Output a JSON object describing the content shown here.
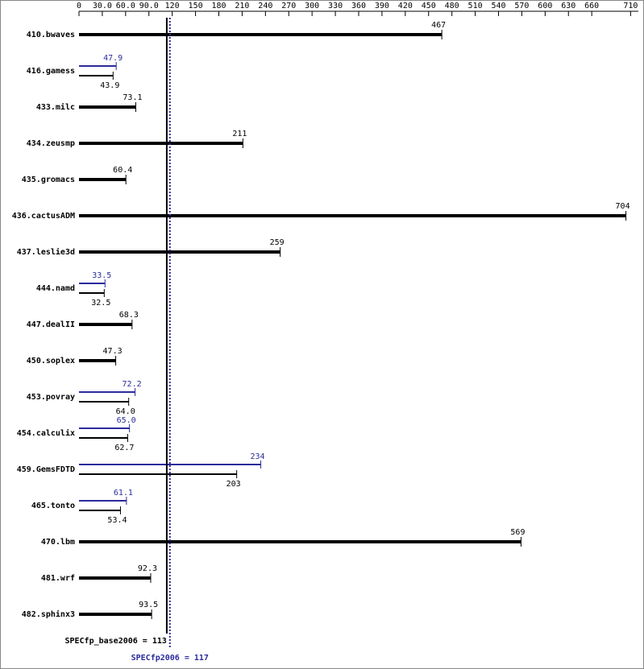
{
  "chart_data": {
    "type": "bar",
    "categories": [
      "410.bwaves",
      "416.gamess",
      "433.milc",
      "434.zeusmp",
      "435.gromacs",
      "436.cactusADM",
      "437.leslie3d",
      "444.namd",
      "447.dealII",
      "450.soplex",
      "453.povray",
      "454.calculix",
      "459.GemsFDTD",
      "465.tonto",
      "470.lbm",
      "481.wrf",
      "482.sphinx3"
    ],
    "series": [
      {
        "color": "#000000",
        "values": [
          467,
          43.9,
          73.1,
          211,
          60.4,
          704,
          259,
          32.5,
          68.3,
          47.3,
          64.0,
          62.7,
          203,
          53.4,
          569,
          92.3,
          93.5
        ],
        "value_labels": [
          "467",
          "43.9",
          "73.1",
          "211",
          "60.4",
          "704",
          "259",
          "32.5",
          "68.3",
          "47.3",
          "64.0",
          "62.7",
          "203",
          "53.4",
          "569",
          "92.3",
          "93.5"
        ]
      },
      {
        "color": "#2b2b9c",
        "values": [
          null,
          47.9,
          null,
          null,
          null,
          null,
          null,
          33.5,
          null,
          null,
          72.2,
          65.0,
          234,
          61.1,
          null,
          null,
          null
        ],
        "value_labels": [
          null,
          "47.9",
          null,
          null,
          null,
          null,
          null,
          "33.5",
          null,
          null,
          "72.2",
          "65.0",
          "234",
          "61.1",
          null,
          null,
          null
        ]
      }
    ],
    "xlim": [
      0,
      720
    ],
    "xticks": [
      0,
      {
        "value": 30,
        "label": "30.0"
      },
      {
        "value": 60,
        "label": "60.0"
      },
      {
        "value": 90,
        "label": "90.0"
      },
      120,
      150,
      180,
      210,
      240,
      270,
      300,
      330,
      360,
      390,
      420,
      450,
      480,
      510,
      540,
      570,
      600,
      630,
      660,
      710
    ],
    "reference_lines": [
      {
        "value": 113,
        "label": "SPECfp_base2006 = 113",
        "color": "#000000"
      },
      {
        "value": 117,
        "label": "SPECfp2006 = 117",
        "color": "#2b2b9c"
      }
    ]
  }
}
